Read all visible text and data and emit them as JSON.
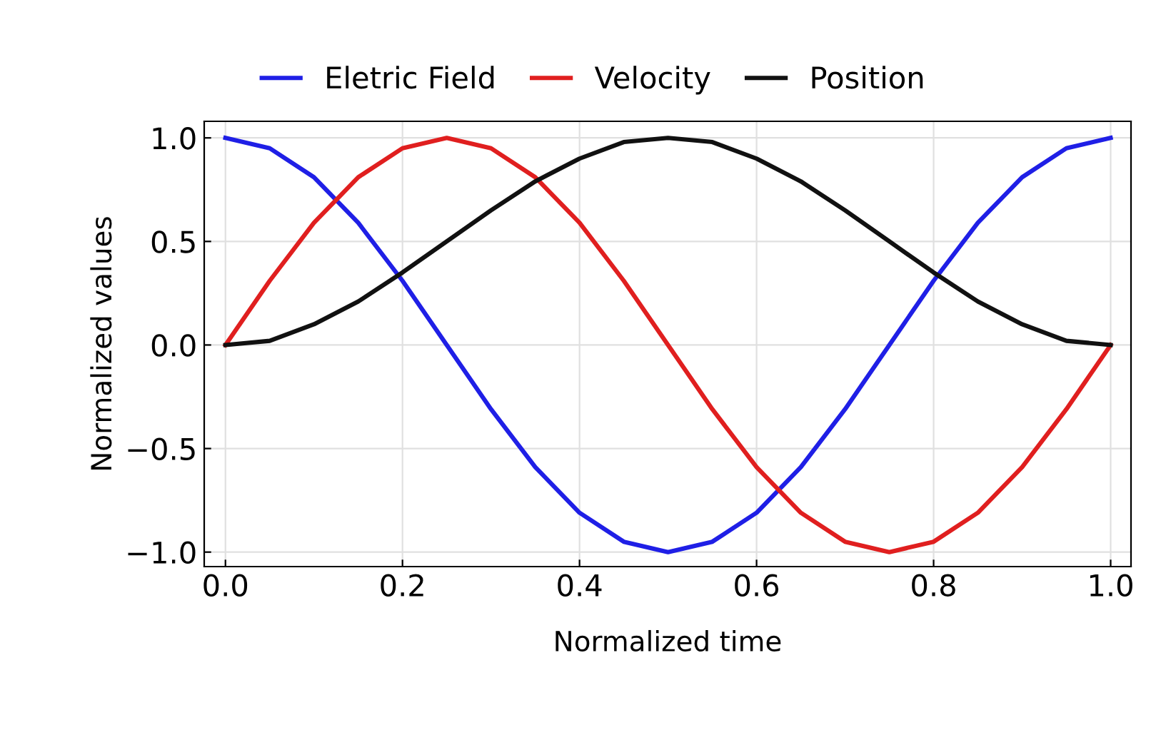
{
  "chart_data": {
    "type": "line",
    "xlabel": "Normalized time",
    "ylabel": "Normalized values",
    "x": [
      0,
      0.05,
      0.1,
      0.15,
      0.2,
      0.25,
      0.3,
      0.35,
      0.4,
      0.45,
      0.5,
      0.55,
      0.6,
      0.65,
      0.7,
      0.75,
      0.8,
      0.85,
      0.9,
      0.95,
      1.0
    ],
    "series": [
      {
        "name": "Eletric Field",
        "color": "#1f1fe6",
        "values": [
          1,
          0.95,
          0.81,
          0.59,
          0.31,
          0,
          -0.31,
          -0.59,
          -0.81,
          -0.95,
          -1,
          -0.95,
          -0.81,
          -0.59,
          -0.31,
          0,
          0.31,
          0.59,
          0.81,
          0.95,
          1
        ]
      },
      {
        "name": "Velocity",
        "color": "#e01f1f",
        "values": [
          0,
          0.31,
          0.59,
          0.81,
          0.95,
          1,
          0.95,
          0.81,
          0.59,
          0.31,
          0,
          -0.31,
          -0.59,
          -0.81,
          -0.95,
          -1,
          -0.95,
          -0.81,
          -0.59,
          -0.31,
          0
        ]
      },
      {
        "name": "Position",
        "color": "#111111",
        "values": [
          0,
          0.02,
          0.1,
          0.21,
          0.35,
          0.5,
          0.65,
          0.79,
          0.9,
          0.98,
          1,
          0.98,
          0.9,
          0.79,
          0.65,
          0.5,
          0.35,
          0.21,
          0.1,
          0.02,
          0
        ]
      }
    ],
    "xlim": [
      -0.024,
      1.023
    ],
    "ylim": [
      -1.07,
      1.08
    ],
    "xticks": [
      {
        "value": 0,
        "label": "0.0"
      },
      0.2,
      0.4,
      0.6,
      0.8,
      {
        "value": 1,
        "label": "1.0"
      }
    ],
    "yticks": [
      {
        "value": -1,
        "label": "−1.0"
      },
      {
        "value": -0.5,
        "label": "−0.5"
      },
      {
        "value": 0,
        "label": "0.0"
      },
      0.5,
      {
        "value": 1,
        "label": "1.0"
      }
    ],
    "grid": true,
    "legend": "top",
    "marker": "none",
    "line_style": "solid"
  }
}
